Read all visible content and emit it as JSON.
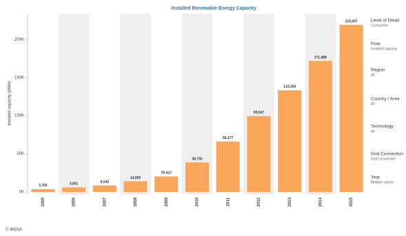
{
  "chart_data": {
    "type": "bar",
    "title": "Installed Renewable Energy Capacity",
    "y_label": "Installed capacity (MWe)",
    "categories": [
      "2005",
      "2006",
      "2007",
      "2008",
      "2009",
      "2010",
      "2011",
      "2012",
      "2013",
      "2014",
      "2015"
    ],
    "values": [
      3705,
      5951,
      8542,
      14050,
      20412,
      38755,
      66177,
      99547,
      133259,
      171888,
      219007
    ],
    "value_labels": [
      "3,705",
      "5,951",
      "8,542",
      "14,050",
      "20,412",
      "38,755",
      "66,177",
      "99,547",
      "133,259",
      "171,888",
      "219,007"
    ],
    "color": "#f9a65a",
    "ylim": [
      0,
      230000
    ],
    "yticks": [
      {
        "value": 0,
        "label": "0K"
      },
      {
        "value": 50000,
        "label": "50K"
      },
      {
        "value": 100000,
        "label": "100K"
      },
      {
        "value": 150000,
        "label": "150K"
      },
      {
        "value": 200000,
        "label": "200K"
      }
    ]
  },
  "filters": [
    {
      "label": "Level of Detail",
      "value": "Cumulative"
    },
    {
      "label": "Flow",
      "value": "Installed capacity"
    },
    {
      "label": "Region",
      "value": "All"
    },
    {
      "label": "Country / Area",
      "value": "All"
    },
    {
      "label": "Technology",
      "value": "All"
    },
    {
      "label": "Grid Connection",
      "value": "Grid Connected"
    },
    {
      "label": "Year",
      "value": "Multiple values"
    }
  ],
  "footer": "© IRENA"
}
